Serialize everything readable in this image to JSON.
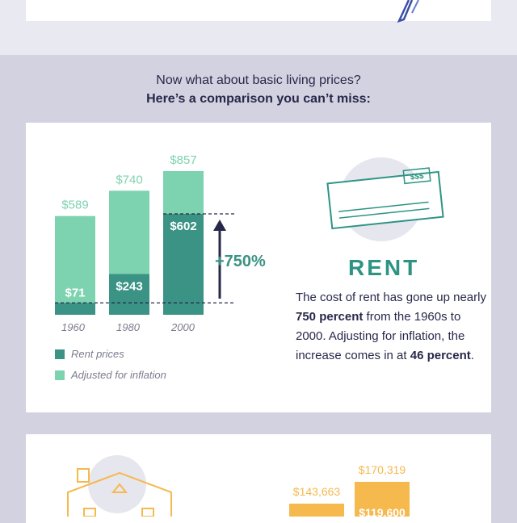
{
  "colors": {
    "page_bg": "#d3d2e0",
    "card_bg": "#ffffff",
    "dark_teal": "#3a9384",
    "light_teal": "#7dd3b0",
    "navy": "#27284a",
    "label_gray": "#7b7c8e",
    "house_orange": "#f5b94e",
    "icon_circle": "#e6e6ee"
  },
  "intro": {
    "line1": "Now what about basic living prices?",
    "line2": "Here’s a comparison you can’t miss:"
  },
  "rent": {
    "title": "RENT",
    "desc_parts": [
      "The cost of rent has gone up nearly ",
      "750 percent",
      " from the 1960s to 2000. Adjusting for inflation, the increase comes in at ",
      "46 percent",
      "."
    ],
    "check_label": "$$$",
    "check_icon": "check-icon",
    "change_label": "+750%",
    "legend": [
      "Rent prices",
      "Adjusted for inflation"
    ]
  },
  "chart_data": {
    "type": "bar",
    "categories": [
      "1960",
      "1980",
      "2000"
    ],
    "series": [
      {
        "name": "Rent prices",
        "values": [
          71,
          243,
          602
        ],
        "labels": [
          "$71",
          "$243",
          "$602"
        ]
      },
      {
        "name": "Adjusted for inflation",
        "values": [
          589,
          740,
          857
        ],
        "labels": [
          "$589",
          "$740",
          "$857"
        ]
      }
    ],
    "annotation": "+750%",
    "legend_position": "bottom-left"
  },
  "house": {
    "icon": "house-icon",
    "bar_labels": [
      "$143,663",
      "$170,319",
      "$119,600"
    ]
  }
}
